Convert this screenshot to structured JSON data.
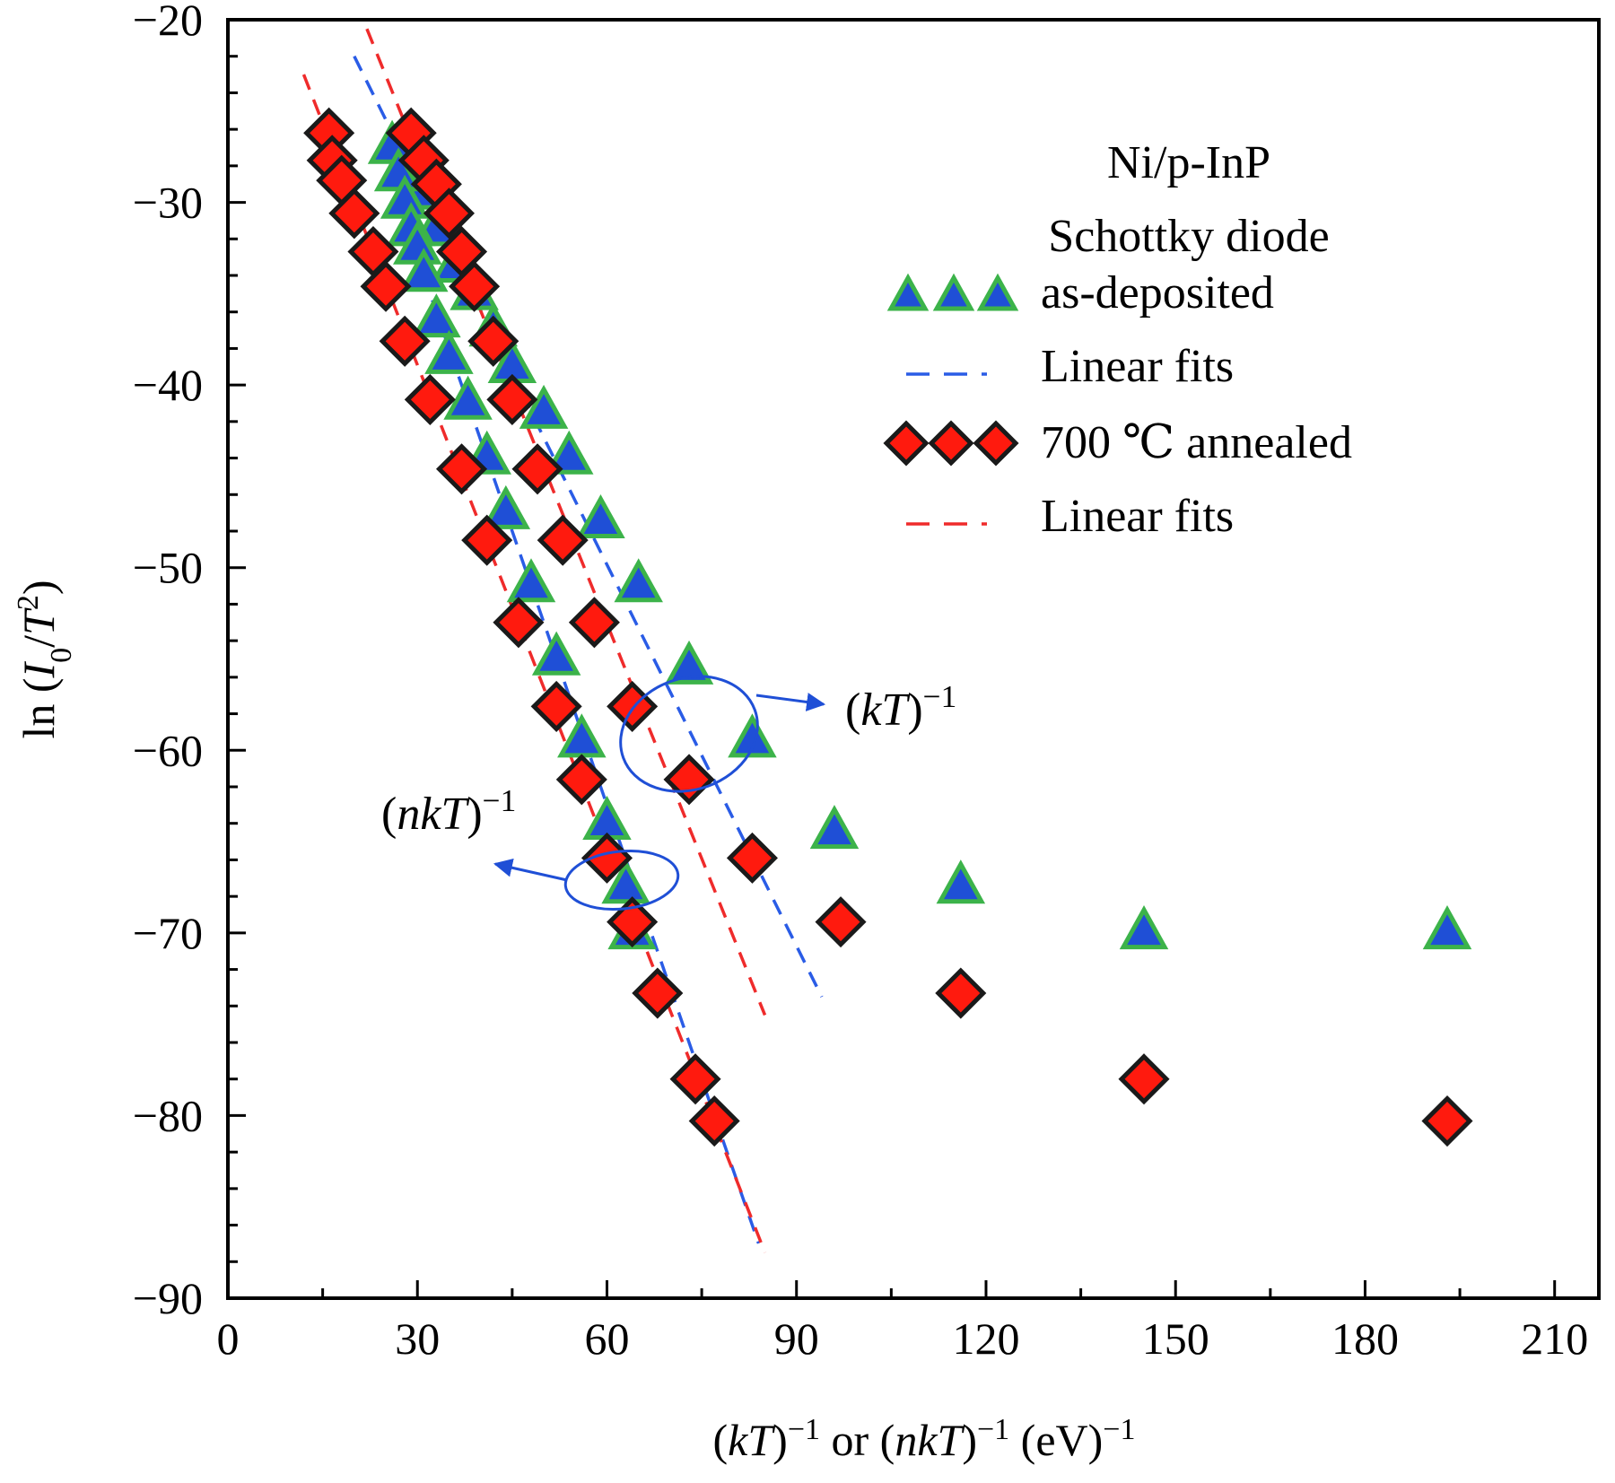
{
  "chart_data": {
    "type": "scatter",
    "x": {
      "lim": [
        0,
        217
      ],
      "ticks": [
        0,
        30,
        60,
        90,
        120,
        150,
        180,
        210
      ],
      "tick_labels": [
        "0",
        "30",
        "60",
        "90",
        "120",
        "150",
        "180",
        "210"
      ],
      "label_parts": [
        "(",
        "kT",
        ")",
        "−1",
        " or (",
        "nkT",
        ")",
        "−1",
        " (eV)",
        "−1"
      ]
    },
    "y": {
      "lim": [
        -90,
        -20
      ],
      "ticks": [
        -90,
        -80,
        -70,
        -60,
        -50,
        -40,
        -30,
        -20
      ],
      "tick_labels": [
        "−90",
        "−80",
        "−70",
        "−60",
        "−50",
        "−40",
        "−30",
        "−20"
      ],
      "label_parts": [
        "ln (",
        "I",
        "0",
        "/",
        "T",
        "2",
        ")"
      ]
    },
    "legend": {
      "position": "top-right",
      "title_lines": [
        "Ni/p-InP",
        "Schottky diode"
      ],
      "entries": [
        {
          "marker": "triangle",
          "label": "as-deposited"
        },
        {
          "marker": "dash-blue",
          "label": "Linear fits"
        },
        {
          "marker": "diamond",
          "label": "700 ℃ annealed"
        },
        {
          "marker": "dash-red",
          "label": "Linear fits"
        }
      ]
    },
    "colors": {
      "triangle_fill": "#1f4fd6",
      "triangle_edge": "#3cb34a",
      "diamond_fill": "#ff1a0e",
      "diamond_edge": "#1a1a1a",
      "fit_blue": "#2a5ce6",
      "fit_red": "#ef2b2b",
      "annotation": "#1f4fd6"
    },
    "annotations": [
      {
        "text_parts": [
          "(",
          "kT",
          ")",
          "−1"
        ],
        "points_to": "(kT)^-1 data"
      },
      {
        "text_parts": [
          "(",
          "nkT",
          ")",
          "−1"
        ],
        "points_to": "(nkT)^-1 data"
      }
    ],
    "series": [
      {
        "name": "as-deposited (kT)⁻¹",
        "marker": "triangle",
        "x": [
          29,
          31,
          33,
          36,
          39,
          42,
          45,
          50,
          54,
          59,
          65,
          73,
          83,
          96,
          116,
          145,
          193
        ],
        "y": [
          -28.0,
          -29.5,
          -31.5,
          -33.5,
          -35.0,
          -37.0,
          -39.0,
          -41.5,
          -44.0,
          -47.5,
          -51.0,
          -55.5,
          -59.5,
          -64.5,
          -67.5,
          -70.0,
          -70.0
        ]
      },
      {
        "name": "as-deposited (nkT)⁻¹",
        "marker": "triangle",
        "x": [
          26,
          27,
          28,
          29,
          30,
          31,
          33,
          35,
          38,
          41,
          44,
          48,
          52,
          56,
          60,
          63,
          64
        ],
        "y": [
          -27.0,
          -28.5,
          -30.0,
          -31.5,
          -32.5,
          -34.0,
          -36.5,
          -38.5,
          -41.0,
          -44.0,
          -47.0,
          -51.0,
          -55.0,
          -59.5,
          -64.0,
          -67.5,
          -70.0
        ]
      },
      {
        "name": "700 ℃ annealed (kT)⁻¹",
        "marker": "diamond",
        "x": [
          29,
          31,
          33,
          35,
          37,
          39,
          42,
          45,
          49,
          53,
          58,
          64,
          73,
          83,
          97,
          116,
          145,
          193
        ],
        "y": [
          -26.2,
          -27.7,
          -29.0,
          -30.6,
          -32.7,
          -34.6,
          -37.6,
          -40.8,
          -44.6,
          -48.5,
          -53.0,
          -57.6,
          -61.6,
          -65.9,
          -69.4,
          -73.3,
          -78.0,
          -80.3
        ]
      },
      {
        "name": "700 ℃ annealed (nkT)⁻¹",
        "marker": "diamond",
        "x": [
          16,
          16.5,
          18,
          20,
          23,
          25,
          28,
          32,
          37,
          41,
          46,
          52,
          56,
          60,
          64,
          68,
          74,
          77
        ],
        "y": [
          -26.2,
          -27.7,
          -28.8,
          -30.6,
          -32.7,
          -34.6,
          -37.6,
          -40.8,
          -44.6,
          -48.5,
          -53.0,
          -57.6,
          -61.6,
          -65.9,
          -69.4,
          -73.3,
          -78.0,
          -80.3
        ]
      }
    ],
    "fits": [
      {
        "name": "Linear fits",
        "color": "fit_blue",
        "x": [
          20,
          94
        ],
        "y": [
          -22.0,
          -73.5
        ]
      },
      {
        "name": "Linear fits",
        "color": "fit_red",
        "x": [
          22,
          85
        ],
        "y": [
          -20.5,
          -74.5
        ]
      },
      {
        "name": "Linear fits",
        "color": "fit_blue",
        "x": [
          24,
          84
        ],
        "y": [
          -27.0,
          -87.0
        ]
      },
      {
        "name": "Linear fits",
        "color": "fit_red",
        "x": [
          12,
          85
        ],
        "y": [
          -23.0,
          -87.5
        ]
      }
    ]
  }
}
